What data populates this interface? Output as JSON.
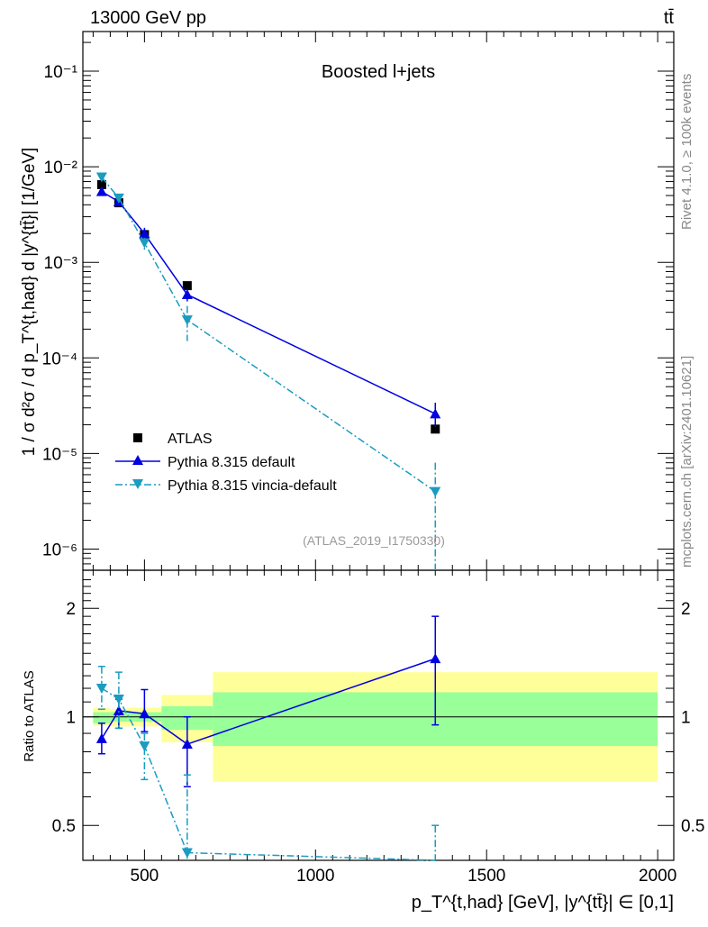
{
  "chart_data": {
    "type": "scatter",
    "title_left": "13000 GeV pp",
    "title_right": "tt̄",
    "annotation": "Boosted l+jets",
    "analysis_id": "(ATLAS_2019_I1750330)",
    "side_label_top": "Rivet 4.1.0, ≥ 100k events",
    "side_label_bottom": "mcplots.cern.ch [arXiv:2401.10621]",
    "ylabel": "1 / σ d²σ / d p_T^{t,had} d |y^{tt̄}| [1/GeV]",
    "ratio_ylabel": "Ratio to ATLAS",
    "xlabel": "p_T^{t,had} [GeV], |y^{tt̄}| ∈ [0,1]",
    "xlim": [
      320,
      2047
    ],
    "ylim": [
      6e-07,
      0.26
    ],
    "ratio_ylim": [
      0.4,
      2.55
    ],
    "yscale": "log",
    "x_ticks": [
      500,
      1000,
      1500,
      2000
    ],
    "x_tick_labels": [
      "500",
      "1000",
      "1500",
      "2000"
    ],
    "y_ticks": [
      1e-06,
      1e-05,
      0.0001,
      0.001,
      0.01,
      0.1
    ],
    "y_tick_labels": [
      "10⁻⁶",
      "10⁻⁵",
      "10⁻⁴",
      "10⁻³",
      "10⁻²",
      "10⁻¹"
    ],
    "ratio_ticks": [
      0.5,
      1,
      2
    ],
    "ratio_tick_labels": [
      "0.5",
      "1",
      "2"
    ],
    "legend_position": "bottom-left",
    "bins": [
      [
        350,
        400
      ],
      [
        400,
        450
      ],
      [
        450,
        550
      ],
      [
        550,
        700
      ],
      [
        700,
        2000
      ]
    ],
    "x": [
      375,
      425,
      500,
      625,
      1350
    ],
    "series": [
      {
        "name": "ATLAS",
        "color": "#000000",
        "marker": "square",
        "values": [
          0.0065,
          0.0042,
          0.00195,
          0.00057,
          1.8e-05
        ]
      },
      {
        "name": "Pythia 8.315 default",
        "color": "#0000e0",
        "marker": "triangle-up",
        "line": "solid",
        "values": [
          0.0055,
          0.0043,
          0.002,
          0.00046,
          2.6e-05
        ],
        "err_low": [
          0.0051,
          0.004,
          0.0018,
          0.00039,
          1.9e-05
        ],
        "err_high": [
          0.0059,
          0.0046,
          0.0023,
          0.00053,
          3.4e-05
        ],
        "ratio": [
          0.87,
          1.04,
          1.02,
          0.84,
          1.45
        ],
        "ratio_low": [
          0.79,
          0.93,
          0.91,
          0.64,
          0.95
        ],
        "ratio_high": [
          0.96,
          1.12,
          1.19,
          1.0,
          1.9
        ]
      },
      {
        "name": "Pythia 8.315 vincia-default",
        "color": "#1a9cc0",
        "marker": "triangle-down",
        "line": "dashdot",
        "values": [
          0.0078,
          0.0047,
          0.0016,
          0.00025,
          4e-06
        ],
        "err_low": [
          0.007,
          0.0042,
          0.0013,
          0.00015,
          6e-07
        ],
        "err_high": [
          0.0086,
          0.0052,
          0.0018,
          0.00035,
          8e-06
        ],
        "ratio": [
          1.2,
          1.12,
          0.83,
          0.42,
          0.22
        ],
        "ratio_low": [
          1.05,
          0.93,
          0.67,
          0.4,
          0.1
        ],
        "ratio_high": [
          1.38,
          1.33,
          0.9,
          0.69,
          0.5
        ]
      }
    ],
    "ratio_bands": {
      "stat_color": "#99ff99",
      "total_color": "#ffff99",
      "green_low": [
        0.96,
        0.97,
        0.97,
        0.92,
        0.83
      ],
      "green_high": [
        1.03,
        1.03,
        1.03,
        1.07,
        1.17
      ],
      "yellow_low": [
        0.944,
        0.94,
        0.94,
        0.85,
        0.66
      ],
      "yellow_high": [
        1.06,
        1.05,
        1.06,
        1.15,
        1.33
      ]
    }
  }
}
